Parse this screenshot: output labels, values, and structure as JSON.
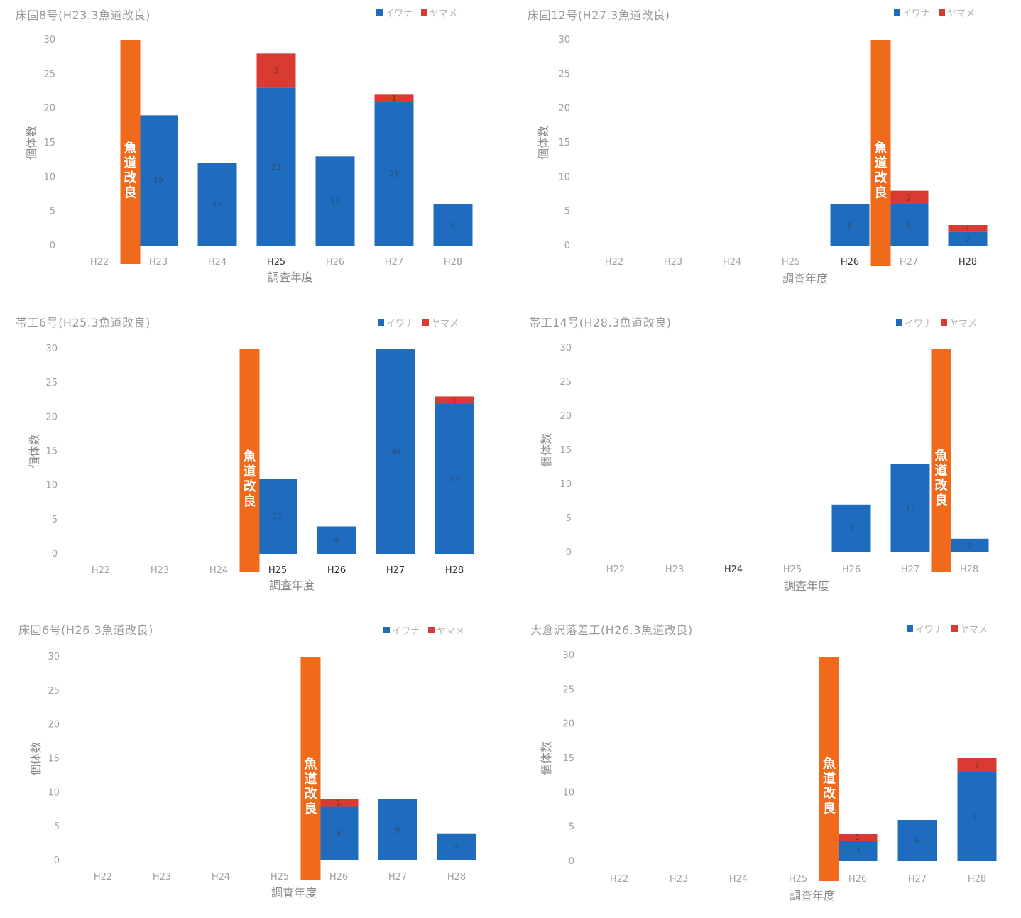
{
  "colors": {
    "iwana": "#1f6cbf",
    "yamame": "#d93a32",
    "kaizen": "#f06a1c"
  },
  "legend": {
    "iwana": "イワナ",
    "yamame": "ヤマメ"
  },
  "kaizen_label": [
    "魚",
    "道",
    "改",
    "良"
  ],
  "chart_data": [
    {
      "type": "bar",
      "title": "床固8号(H23.3魚道改良)",
      "xlabel": "調査年度",
      "ylabel": "個体数",
      "ylim": [
        0,
        30
      ],
      "yticks": [
        0,
        5,
        10,
        15,
        20,
        25,
        30
      ],
      "categories": [
        "H22",
        "H23",
        "H24",
        "H25",
        "H26",
        "H27",
        "H28"
      ],
      "bold_categories": [
        "H25"
      ],
      "series": [
        {
          "name": "イワナ",
          "values": [
            0,
            19,
            12,
            23,
            13,
            21,
            6
          ],
          "labels": [
            "",
            "19",
            "12",
            "23",
            "13",
            "21",
            "6"
          ]
        },
        {
          "name": "ヤマメ",
          "values": [
            0,
            0,
            0,
            5,
            0,
            1,
            0
          ],
          "labels": [
            "",
            "",
            "",
            "5",
            "",
            "1",
            ""
          ]
        }
      ],
      "marker_between": [
        "H22",
        "H23"
      ],
      "marker_label": "魚道改良"
    },
    {
      "type": "bar",
      "title": "床固12号(H27.3魚道改良)",
      "xlabel": "調査年度",
      "ylabel": "個体数",
      "ylim": [
        0,
        30
      ],
      "yticks": [
        0,
        5,
        10,
        15,
        20,
        25,
        30
      ],
      "categories": [
        "H22",
        "H23",
        "H24",
        "H25",
        "H26",
        "H27",
        "H28"
      ],
      "bold_categories": [
        "H26",
        "H28"
      ],
      "series": [
        {
          "name": "イワナ",
          "values": [
            0,
            0,
            0,
            0,
            6,
            6,
            2
          ],
          "labels": [
            "",
            "",
            "",
            "",
            "6",
            "6",
            "2"
          ]
        },
        {
          "name": "ヤマメ",
          "values": [
            0,
            0,
            0,
            0,
            0,
            2,
            1
          ],
          "labels": [
            "",
            "",
            "",
            "",
            "",
            "2",
            "1"
          ]
        }
      ],
      "marker_between": [
        "H26",
        "H27"
      ],
      "marker_label": "魚道改良"
    },
    {
      "type": "bar",
      "title": "帯工6号(H25.3魚道改良)",
      "xlabel": "調査年度",
      "ylabel": "個体数",
      "ylim": [
        0,
        30
      ],
      "yticks": [
        0,
        5,
        10,
        15,
        20,
        25,
        30
      ],
      "categories": [
        "H22",
        "H23",
        "H24",
        "H25",
        "H26",
        "H27",
        "H28"
      ],
      "bold_categories": [
        "H25",
        "H26",
        "H27",
        "H28"
      ],
      "series": [
        {
          "name": "イワナ",
          "values": [
            0,
            0,
            0,
            11,
            4,
            30,
            22
          ],
          "labels": [
            "",
            "",
            "",
            "11",
            "4",
            "30",
            "22"
          ]
        },
        {
          "name": "ヤマメ",
          "values": [
            0,
            0,
            0,
            0,
            0,
            0,
            1
          ],
          "labels": [
            "",
            "",
            "",
            "",
            "",
            "",
            "1"
          ]
        }
      ],
      "marker_between": [
        "H24",
        "H25"
      ],
      "marker_label": "魚道改良"
    },
    {
      "type": "bar",
      "title": "帯工14号(H28.3魚道改良)",
      "xlabel": "調査年度",
      "ylabel": "個体数",
      "ylim": [
        0,
        30
      ],
      "yticks": [
        0,
        5,
        10,
        15,
        20,
        25,
        30
      ],
      "categories": [
        "H22",
        "H23",
        "H24",
        "H25",
        "H26",
        "H27",
        "H28"
      ],
      "bold_categories": [
        "H24"
      ],
      "series": [
        {
          "name": "イワナ",
          "values": [
            0,
            0,
            0,
            0,
            7,
            13,
            2
          ],
          "labels": [
            "",
            "",
            "",
            "",
            "7",
            "13",
            "2"
          ]
        },
        {
          "name": "ヤマメ",
          "values": [
            0,
            0,
            0,
            0,
            0,
            0,
            0
          ],
          "labels": [
            "",
            "",
            "",
            "",
            "",
            "",
            ""
          ]
        }
      ],
      "marker_between": [
        "H27",
        "H28"
      ],
      "marker_label": "魚道改良"
    },
    {
      "type": "bar",
      "title": "床固6号(H26.3魚道改良)",
      "xlabel": "調査年度",
      "ylabel": "個体数",
      "ylim": [
        0,
        30
      ],
      "yticks": [
        0,
        5,
        10,
        15,
        20,
        25,
        30
      ],
      "categories": [
        "H22",
        "H23",
        "H24",
        "H25",
        "H26",
        "H27",
        "H28"
      ],
      "bold_categories": [],
      "series": [
        {
          "name": "イワナ",
          "values": [
            0,
            0,
            0,
            0,
            8,
            9,
            4
          ],
          "labels": [
            "",
            "",
            "",
            "",
            "8",
            "9",
            "4"
          ]
        },
        {
          "name": "ヤマメ",
          "values": [
            0,
            0,
            0,
            0,
            1,
            0,
            0
          ],
          "labels": [
            "",
            "",
            "",
            "",
            "1",
            "",
            ""
          ]
        }
      ],
      "marker_between": [
        "H25",
        "H26"
      ],
      "marker_label": "魚道改良"
    },
    {
      "type": "bar",
      "title": "大倉沢落差工(H26.3魚道改良)",
      "xlabel": "調査年度",
      "ylabel": "個体数",
      "ylim": [
        0,
        30
      ],
      "yticks": [
        0,
        5,
        10,
        15,
        20,
        25,
        30
      ],
      "categories": [
        "H22",
        "H23",
        "H24",
        "H25",
        "H26",
        "H27",
        "H28"
      ],
      "bold_categories": [],
      "series": [
        {
          "name": "イワナ",
          "values": [
            0,
            0,
            0,
            0,
            3,
            6,
            13
          ],
          "labels": [
            "",
            "",
            "",
            "",
            "3",
            "6",
            "13"
          ]
        },
        {
          "name": "ヤマメ",
          "values": [
            0,
            0,
            0,
            0,
            1,
            0,
            2
          ],
          "labels": [
            "",
            "",
            "",
            "",
            "1",
            "",
            "2"
          ]
        }
      ],
      "marker_between": [
        "H25",
        "H26"
      ],
      "marker_label": "魚道改良"
    }
  ]
}
